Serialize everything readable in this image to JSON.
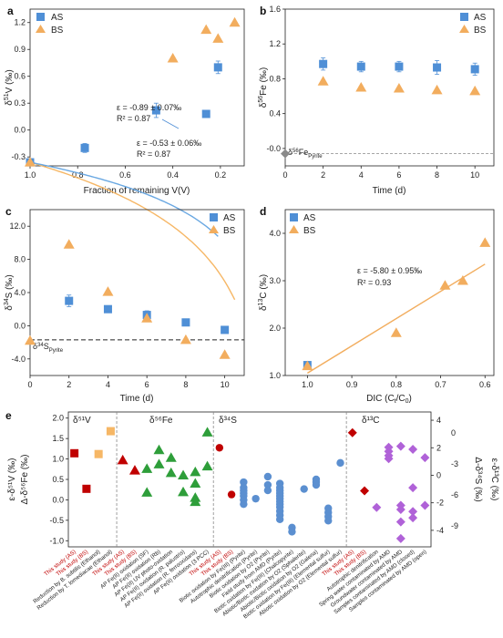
{
  "colors": {
    "AS": "#4f8fd6",
    "BS": "#f2ad5e",
    "AS_line": "#6aa8e2",
    "BS_line": "#f6b766",
    "red": "#c00000",
    "green": "#2e9e3a",
    "blue": "#5b8fd0",
    "purple": "#b062d8",
    "orange": "#f6b766",
    "redtext": "#c00000"
  },
  "chart_data": [
    {
      "panel": "a",
      "type": "scatter",
      "xlabel": "Fraction of remaining V(V)",
      "ylabel": "δ51V (‰)",
      "xlim": [
        1.0,
        0.1
      ],
      "ylim": [
        -0.4,
        1.35
      ],
      "xticks": [
        "1.0",
        "0.8",
        "0.6",
        "0.4",
        "0.2"
      ],
      "yticks": [
        "-0.3",
        "0.0",
        "0.3",
        "0.6",
        "0.9",
        "1.2"
      ],
      "legend": [
        "AS",
        "BS"
      ],
      "series": [
        {
          "name": "AS",
          "x": [
            1.0,
            0.77,
            0.47,
            0.26,
            0.21
          ],
          "y": [
            -0.36,
            -0.2,
            0.22,
            0.18,
            0.7
          ],
          "err": [
            0.03,
            0.05,
            0.08,
            0.03,
            0.07
          ]
        },
        {
          "name": "BS",
          "x": [
            1.0,
            0.4,
            0.26,
            0.21,
            0.14
          ],
          "y": [
            -0.36,
            0.8,
            1.12,
            1.02,
            1.2
          ],
          "err": [
            0.0,
            0.0,
            0.0,
            0.0,
            0.0
          ]
        }
      ],
      "annotations": [
        "ε = -0.89 ± 0.07‰",
        "R² = 0.87",
        "ε = -0.53 ± 0.06‰",
        "R² = 0.87"
      ]
    },
    {
      "panel": "b",
      "type": "scatter",
      "xlabel": "Time (d)",
      "ylabel": "δ56Fe (‰)",
      "xlim": [
        0,
        11
      ],
      "ylim": [
        -0.2,
        1.6
      ],
      "xticks": [
        "0",
        "2",
        "4",
        "6",
        "8",
        "10"
      ],
      "yticks": [
        "-0.0",
        "0.4",
        "0.8",
        "1.2",
        "1.6"
      ],
      "legend": [
        "AS",
        "BS"
      ],
      "series": [
        {
          "name": "AS",
          "x": [
            2,
            4,
            6,
            8,
            10
          ],
          "y": [
            0.97,
            0.94,
            0.94,
            0.93,
            0.91
          ],
          "err": [
            0.07,
            0.06,
            0.06,
            0.08,
            0.07
          ]
        },
        {
          "name": "BS",
          "x": [
            2,
            4,
            6,
            8,
            10
          ],
          "y": [
            0.77,
            0.7,
            0.69,
            0.67,
            0.66
          ],
          "err": [
            0,
            0,
            0,
            0,
            0
          ]
        }
      ],
      "reference": {
        "label": "δ56FePyrite",
        "y": -0.06
      }
    },
    {
      "panel": "c",
      "type": "scatter",
      "xlabel": "Time (d)",
      "ylabel": "δ34S (‰)",
      "xlim": [
        0,
        11
      ],
      "ylim": [
        -6.0,
        14.0
      ],
      "xticks": [
        "0",
        "2",
        "4",
        "6",
        "8",
        "10"
      ],
      "yticks": [
        "-4.0",
        "0.0",
        "4.0",
        "8.0",
        "12.0"
      ],
      "legend": [
        "AS",
        "BS"
      ],
      "series": [
        {
          "name": "AS",
          "x": [
            2,
            4,
            6,
            8,
            10
          ],
          "y": [
            3.0,
            2.0,
            1.3,
            0.4,
            -0.5
          ],
          "err": [
            0.7,
            0.4,
            0.5,
            0.3,
            0.3
          ]
        },
        {
          "name": "BS",
          "x": [
            0,
            2,
            4,
            6,
            8,
            10
          ],
          "y": [
            -1.8,
            9.8,
            4.1,
            0.9,
            -1.7,
            -3.5
          ],
          "err": [
            0,
            0,
            0,
            0,
            0,
            0
          ]
        }
      ],
      "reference": {
        "label": "δ34SPyrite",
        "y": -1.7
      }
    },
    {
      "panel": "d",
      "type": "scatter",
      "xlabel": "DIC (Ct/C0)",
      "ylabel": "δ13C (‰)",
      "xlim": [
        1.05,
        0.58
      ],
      "ylim": [
        1.0,
        4.5
      ],
      "xticks": [
        "1.0",
        "0.9",
        "0.8",
        "0.7",
        "0.6"
      ],
      "yticks": [
        "1.0",
        "2.0",
        "3.0",
        "4.0"
      ],
      "legend": [
        "AS",
        "BS"
      ],
      "series": [
        {
          "name": "AS",
          "x": [
            1.0
          ],
          "y": [
            1.22
          ],
          "err": [
            0.05
          ]
        },
        {
          "name": "BS",
          "x": [
            1.0,
            0.8,
            0.69,
            0.65,
            0.6
          ],
          "y": [
            1.2,
            1.9,
            2.9,
            3.0,
            3.8
          ],
          "err": [
            0,
            0,
            0,
            0,
            0
          ]
        }
      ],
      "annotations": [
        "ε = -5.80 ± 0.95‰",
        "R² = 0.93"
      ]
    },
    {
      "panel": "e",
      "type": "scatter",
      "sections": [
        "δ51V",
        "δ56Fe",
        "δ34S",
        "δ13C"
      ],
      "ylabel_left": "ε-δ51V (‰)",
      "ylabel_left2": "Δ-δ56Fe (‰)",
      "ylabel_right": "Δ-δ34S (‰)",
      "ylabel_right2": "ε-δ13C (‰)",
      "yticks_left": [
        "-1.0",
        "-0.5",
        "0.0",
        "0.5",
        "1.0",
        "1.5",
        "2.0"
      ],
      "yticks_right": [
        "-4",
        "-2",
        "0",
        "2",
        "4"
      ],
      "yticks_right2": [
        "-9",
        "-6",
        "-3",
        "0"
      ],
      "categories": [
        {
          "label": "This study (AS)",
          "red": true
        },
        {
          "label": "This study (BS)",
          "red": true
        },
        {
          "label": "Reduction by B. subtilis (Ethanol)",
          "red": false
        },
        {
          "label": "Reduction by T. lomediacae (Ethanol)",
          "red": false
        },
        {
          "label": "This study (AS)",
          "red": true
        },
        {
          "label": "This study (BS)",
          "red": true
        },
        {
          "label": "AP Fe(II) oxidation (SF)",
          "red": false
        },
        {
          "label": "AP Fe(II) oxidation (Rb)",
          "red": false
        },
        {
          "label": "AP Fe(II) UV photo-oxidation",
          "red": false
        },
        {
          "label": "AP Fe(II) oxidation (R. palustris)",
          "red": false
        },
        {
          "label": "AP Fe(II) oxidation (R. ferrooxidans)",
          "red": false
        },
        {
          "label": "AP Fe(II) oxidation (3 PCC)",
          "red": false
        },
        {
          "label": "This study (AS)",
          "red": true
        },
        {
          "label": "This study (BS)",
          "red": true
        },
        {
          "label": "Biotic oxidation by Fe(III) (Pyrite)",
          "red": false
        },
        {
          "label": "Autotrophic denitrification (Pyrite)",
          "red": false
        },
        {
          "label": "Biotic oxidation by O2 (Pyrite)",
          "red": false
        },
        {
          "label": "Field study from AMD (Pyrite)",
          "red": false
        },
        {
          "label": "Biotic oxidation by Fe(III) (Chalcopyrite)",
          "red": false
        },
        {
          "label": "Abiotic/Biotic oxidation by O2 (Sphalerite)",
          "red": false
        },
        {
          "label": "Abiotic/Biotic oxidation by O2 (Galena)",
          "red": false
        },
        {
          "label": "Biotic oxidation by Fe(III) (Elemental sulfur)",
          "red": false
        },
        {
          "label": "Abiotic oxidation by O2 (Elemental sulfur)",
          "red": false
        },
        {
          "label": "This study (AS)",
          "red": true
        },
        {
          "label": "This study (BS)",
          "red": true
        },
        {
          "label": "Autotrophic denitrification",
          "red": false
        },
        {
          "label": "Spring water contaminated by AMD",
          "red": false
        },
        {
          "label": "Groundwater contaminated by AMD",
          "red": false
        },
        {
          "label": "Samples contaminated by AMD (closed)",
          "red": false
        },
        {
          "label": "Samples contaminated by AMD (open)",
          "red": false
        }
      ],
      "points": {
        "V": [
          [
            0,
            1.14,
            "red"
          ],
          [
            1,
            0.27,
            "red"
          ],
          [
            2,
            1.12,
            "orange"
          ],
          [
            3,
            1.68,
            "orange"
          ]
        ],
        "Fe": [
          [
            4,
            0.97,
            "red"
          ],
          [
            5,
            0.72,
            "red"
          ],
          [
            6,
            0.76,
            "green"
          ],
          [
            6,
            0.18,
            "green"
          ],
          [
            7,
            0.87,
            "green"
          ],
          [
            7,
            1.22,
            "green"
          ],
          [
            8,
            1.03,
            "green"
          ],
          [
            8,
            0.66,
            "green"
          ],
          [
            9,
            0.6,
            "green"
          ],
          [
            9,
            0.19,
            "green"
          ],
          [
            10,
            0.68,
            "green"
          ],
          [
            10,
            0.4,
            "green"
          ],
          [
            10,
            0.05,
            "green"
          ],
          [
            10,
            -0.05,
            "green"
          ],
          [
            11,
            0.82,
            "green"
          ],
          [
            11,
            1.65,
            "green"
          ]
        ],
        "S": [
          [
            12,
            2.0,
            "red"
          ],
          [
            13,
            -1.4,
            "red"
          ],
          [
            14,
            -0.5,
            "blue"
          ],
          [
            14,
            -0.9,
            "blue"
          ],
          [
            14,
            -1.1,
            "blue"
          ],
          [
            14,
            -1.3,
            "blue"
          ],
          [
            14,
            -1.5,
            "blue"
          ],
          [
            14,
            -1.8,
            "blue"
          ],
          [
            14,
            -2.1,
            "blue"
          ],
          [
            15,
            -1.7,
            "blue"
          ],
          [
            16,
            -0.1,
            "blue"
          ],
          [
            16,
            -0.7,
            "blue"
          ],
          [
            16,
            -1.1,
            "blue"
          ],
          [
            17,
            -0.6,
            "blue"
          ],
          [
            17,
            -0.9,
            "blue"
          ],
          [
            17,
            -1.1,
            "blue"
          ],
          [
            17,
            -1.3,
            "blue"
          ],
          [
            17,
            -1.5,
            "blue"
          ],
          [
            17,
            -1.7,
            "blue"
          ],
          [
            17,
            -1.9,
            "blue"
          ],
          [
            17,
            -2.1,
            "blue"
          ],
          [
            17,
            -2.3,
            "blue"
          ],
          [
            17,
            -2.6,
            "blue"
          ],
          [
            17,
            -2.9,
            "blue"
          ],
          [
            17,
            -3.2,
            "blue"
          ],
          [
            18,
            -3.8,
            "blue"
          ],
          [
            18,
            -4.1,
            "blue"
          ],
          [
            19,
            -1.0,
            "blue"
          ],
          [
            20,
            -0.3,
            "blue"
          ],
          [
            20,
            -0.5,
            "blue"
          ],
          [
            20,
            -0.7,
            "blue"
          ],
          [
            21,
            -2.4,
            "blue"
          ],
          [
            21,
            -2.7,
            "blue"
          ],
          [
            21,
            -3.0,
            "blue"
          ],
          [
            21,
            -3.3,
            "blue"
          ],
          [
            22,
            0.9,
            "blue"
          ]
        ],
        "C": [
          [
            23,
            0.0,
            "red"
          ],
          [
            24,
            -5.6,
            "red"
          ],
          [
            25,
            -7.2,
            "purple"
          ],
          [
            26,
            -1.8,
            "purple"
          ],
          [
            26,
            -2.2,
            "purple"
          ],
          [
            26,
            -2.5,
            "purple"
          ],
          [
            26,
            -1.4,
            "purple"
          ],
          [
            27,
            -1.3,
            "purple"
          ],
          [
            27,
            -7.0,
            "purple"
          ],
          [
            27,
            -7.4,
            "purple"
          ],
          [
            27,
            -8.6,
            "purple"
          ],
          [
            27,
            -10.2,
            "purple"
          ],
          [
            28,
            -1.6,
            "purple"
          ],
          [
            28,
            -5.3,
            "purple"
          ],
          [
            28,
            -7.6,
            "purple"
          ],
          [
            28,
            -8.2,
            "purple"
          ],
          [
            29,
            -2.4,
            "purple"
          ],
          [
            29,
            -7.0,
            "purple"
          ]
        ]
      }
    }
  ],
  "panels": {
    "a": {
      "letter": "a",
      "xlabel": "Fraction of remaining V(V)",
      "ylab_main": "δ",
      "ylab_sup": "51",
      "ylab_rest": "V (‰)",
      "eq1": "ε = -0.89 ± 0.07‰",
      "r1": "R² = 0.87",
      "eq2": "ε = -0.53 ± 0.06‰",
      "r2": "R² = 0.87",
      "legend_as": "AS",
      "legend_bs": "BS"
    },
    "b": {
      "letter": "b",
      "xlabel": "Time (d)",
      "ylab_main": "δ",
      "ylab_sup": "56",
      "ylab_rest": "Fe (‰)",
      "ref_main": "δ",
      "ref_sup": "56",
      "ref_rest": "Fe",
      "ref_sub": "Pyrite",
      "legend_as": "AS",
      "legend_bs": "BS"
    },
    "c": {
      "letter": "c",
      "xlabel": "Time (d)",
      "ylab_main": "δ",
      "ylab_sup": "34",
      "ylab_rest": "S (‰)",
      "ref_main": "δ",
      "ref_sup": "34",
      "ref_rest": "S",
      "ref_sub": "Pyrite",
      "legend_as": "AS",
      "legend_bs": "BS"
    },
    "d": {
      "letter": "d",
      "xlabel_main": "DIC (C",
      "xlabel_sub1": "t",
      "xlabel_mid": "/C",
      "xlabel_sub2": "0",
      "xlabel_end": ")",
      "ylab_main": "δ",
      "ylab_sup": "13",
      "ylab_rest": "C (‰)",
      "eq1": "ε = -5.80 ± 0.95‰",
      "r1": "R² = 0.93",
      "legend_as": "AS",
      "legend_bs": "BS"
    },
    "e": {
      "letter": "e",
      "sec_v": "δ⁵¹V",
      "sec_fe": "δ⁵⁶Fe",
      "sec_s": "δ³⁴S",
      "sec_c": "δ¹³C",
      "yl1": "ε-δ⁵¹V (‰)",
      "yl2": "Δ-δ⁵⁶Fe (‰)",
      "yr1": "Δ-δ³⁴S (‰)",
      "yr2": "ε-δ¹³C (‰)"
    }
  }
}
